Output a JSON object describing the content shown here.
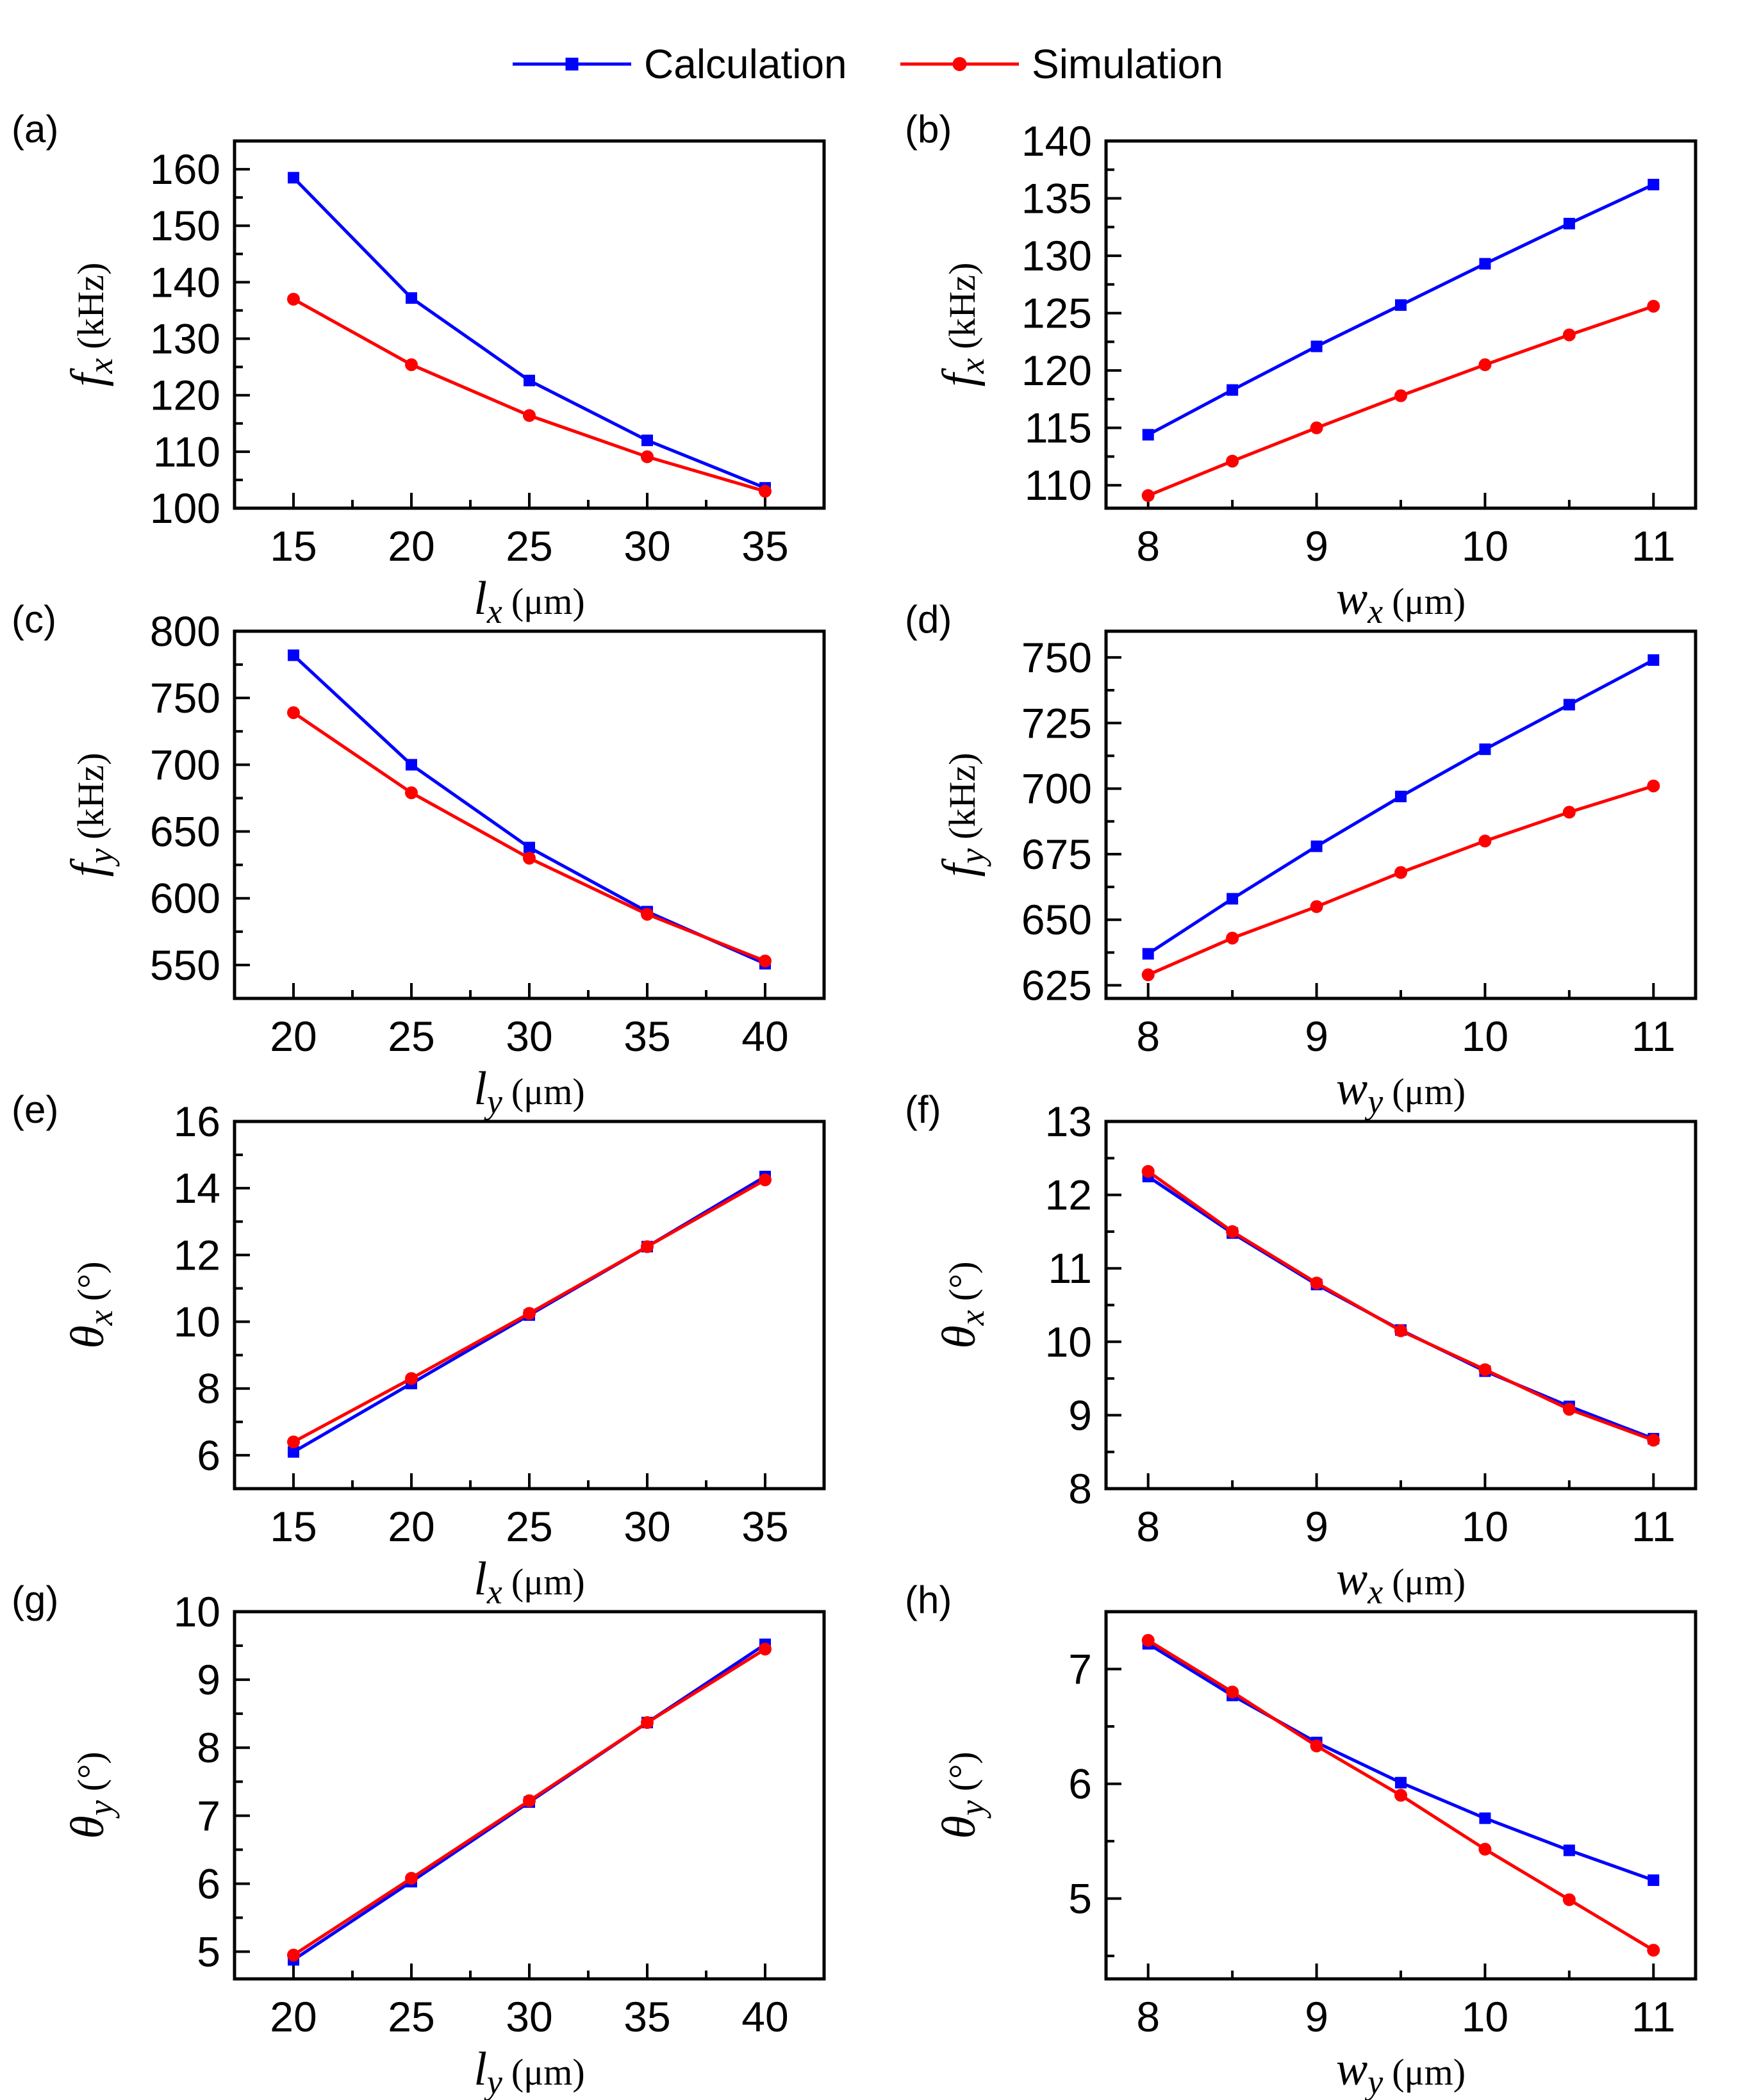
{
  "legend": {
    "entries": [
      {
        "name": "Calculation",
        "color": "#0000ff",
        "marker": "square"
      },
      {
        "name": "Simulation",
        "color": "#ff0000",
        "marker": "circle"
      }
    ]
  },
  "chart_data": [
    {
      "panel": "(a)",
      "type": "line",
      "xlabel": {
        "sym": "l",
        "sub": "x",
        "unit": "(μm)"
      },
      "ylabel": {
        "sym": "f",
        "sub": "x",
        "unit": "(kHz)"
      },
      "xlim": [
        12.5,
        37.5
      ],
      "ylim": [
        100,
        165
      ],
      "xticks": [
        15,
        20,
        25,
        30,
        35
      ],
      "xminor": [
        17.5,
        22.5,
        27.5,
        32.5
      ],
      "yticks": [
        100,
        110,
        120,
        130,
        140,
        150,
        160
      ],
      "yminor": [
        105,
        115,
        125,
        135,
        145,
        155
      ],
      "x": [
        15,
        20,
        25,
        30,
        35
      ],
      "series": [
        {
          "name": "Calculation",
          "values": [
            158.5,
            137.2,
            122.6,
            112.0,
            103.6
          ]
        },
        {
          "name": "Simulation",
          "values": [
            137.0,
            125.4,
            116.4,
            109.1,
            103.0
          ]
        }
      ]
    },
    {
      "panel": "(b)",
      "type": "line",
      "xlabel": {
        "sym": "w",
        "sub": "x",
        "unit": "(μm)"
      },
      "ylabel": {
        "sym": "f",
        "sub": "x",
        "unit": "(kHz)"
      },
      "xlim": [
        7.75,
        11.25
      ],
      "ylim": [
        108,
        140
      ],
      "xticks": [
        8,
        9,
        10,
        11
      ],
      "xminor": [
        8.5,
        9.5,
        10.5
      ],
      "yticks": [
        110,
        115,
        120,
        125,
        130,
        135,
        140
      ],
      "yminor": [
        112.5,
        117.5,
        122.5,
        127.5,
        132.5,
        137.5
      ],
      "x": [
        8,
        8.5,
        9,
        9.5,
        10,
        10.5,
        11
      ],
      "series": [
        {
          "name": "Calculation",
          "values": [
            114.4,
            118.3,
            122.1,
            125.7,
            129.3,
            132.8,
            136.2
          ]
        },
        {
          "name": "Simulation",
          "values": [
            109.1,
            112.1,
            115.0,
            117.8,
            120.5,
            123.1,
            125.6
          ]
        }
      ]
    },
    {
      "panel": "(c)",
      "type": "line",
      "xlabel": {
        "sym": "l",
        "sub": "y",
        "unit": "(μm)"
      },
      "ylabel": {
        "sym": "f",
        "sub": "y",
        "unit": "(kHz)"
      },
      "xlim": [
        17.5,
        42.5
      ],
      "ylim": [
        525,
        800
      ],
      "xticks": [
        20,
        25,
        30,
        35,
        40
      ],
      "xminor": [
        22.5,
        27.5,
        32.5,
        37.5
      ],
      "yticks": [
        550,
        600,
        650,
        700,
        750,
        800
      ],
      "yminor": [
        575,
        625,
        675,
        725,
        775
      ],
      "x": [
        20,
        25,
        30,
        35,
        40
      ],
      "series": [
        {
          "name": "Calculation",
          "values": [
            782,
            700,
            638,
            590,
            551
          ]
        },
        {
          "name": "Simulation",
          "values": [
            739,
            679,
            630,
            588,
            553
          ]
        }
      ]
    },
    {
      "panel": "(d)",
      "type": "line",
      "xlabel": {
        "sym": "w",
        "sub": "y",
        "unit": "(μm)"
      },
      "ylabel": {
        "sym": "f",
        "sub": "y",
        "unit": "(kHz)"
      },
      "xlim": [
        7.75,
        11.25
      ],
      "ylim": [
        620,
        760
      ],
      "xticks": [
        8,
        9,
        10,
        11
      ],
      "xminor": [
        8.5,
        9.5,
        10.5
      ],
      "yticks": [
        625,
        650,
        675,
        700,
        725,
        750
      ],
      "yminor": [
        637.5,
        662.5,
        687.5,
        712.5,
        737.5
      ],
      "x": [
        8,
        8.5,
        9,
        9.5,
        10,
        10.5,
        11
      ],
      "series": [
        {
          "name": "Calculation",
          "values": [
            637,
            658,
            678,
            697,
            715,
            732,
            749
          ]
        },
        {
          "name": "Simulation",
          "values": [
            629,
            643,
            655,
            668,
            680,
            691,
            701
          ]
        }
      ]
    },
    {
      "panel": "(e)",
      "type": "line",
      "xlabel": {
        "sym": "l",
        "sub": "x",
        "unit": "(μm)"
      },
      "ylabel": {
        "sym": "θ",
        "sub": "x",
        "unit": "(°)"
      },
      "xlim": [
        12.5,
        37.5
      ],
      "ylim": [
        5,
        16
      ],
      "xticks": [
        15,
        20,
        25,
        30,
        35
      ],
      "xminor": [
        17.5,
        22.5,
        27.5,
        32.5
      ],
      "yticks": [
        6,
        8,
        10,
        12,
        14,
        16
      ],
      "yminor": [
        7,
        9,
        11,
        13,
        15
      ],
      "x": [
        15,
        20,
        25,
        30,
        35
      ],
      "series": [
        {
          "name": "Calculation",
          "values": [
            6.1,
            8.15,
            10.2,
            12.25,
            14.35
          ]
        },
        {
          "name": "Simulation",
          "values": [
            6.4,
            8.3,
            10.25,
            12.25,
            14.25
          ]
        }
      ]
    },
    {
      "panel": "(f)",
      "type": "line",
      "xlabel": {
        "sym": "w",
        "sub": "x",
        "unit": "(μm)"
      },
      "ylabel": {
        "sym": "θ",
        "sub": "x",
        "unit": "(°)"
      },
      "xlim": [
        7.75,
        11.25
      ],
      "ylim": [
        8,
        13
      ],
      "xticks": [
        8,
        9,
        10,
        11
      ],
      "xminor": [
        8.5,
        9.5,
        10.5
      ],
      "yticks": [
        8,
        9,
        10,
        11,
        12,
        13
      ],
      "yminor": [
        8.5,
        9.5,
        10.5,
        11.5,
        12.5
      ],
      "x": [
        8,
        8.5,
        9,
        9.5,
        10,
        10.5,
        11
      ],
      "series": [
        {
          "name": "Calculation",
          "values": [
            12.25,
            11.48,
            10.78,
            10.16,
            9.6,
            9.12,
            8.68
          ]
        },
        {
          "name": "Simulation",
          "values": [
            12.32,
            11.5,
            10.8,
            10.15,
            9.62,
            9.08,
            8.66
          ]
        }
      ]
    },
    {
      "panel": "(g)",
      "type": "line",
      "xlabel": {
        "sym": "l",
        "sub": "y",
        "unit": "(μm)"
      },
      "ylabel": {
        "sym": "θ",
        "sub": "y",
        "unit": "(°)"
      },
      "xlim": [
        17.5,
        42.5
      ],
      "ylim": [
        4.6,
        10
      ],
      "xticks": [
        20,
        25,
        30,
        35,
        40
      ],
      "xminor": [
        22.5,
        27.5,
        32.5,
        37.5
      ],
      "yticks": [
        5,
        6,
        7,
        8,
        9,
        10
      ],
      "yminor": [
        5.5,
        6.5,
        7.5,
        8.5,
        9.5
      ],
      "x": [
        20,
        25,
        30,
        35,
        40
      ],
      "series": [
        {
          "name": "Calculation",
          "values": [
            4.88,
            6.03,
            7.2,
            8.37,
            9.52
          ]
        },
        {
          "name": "Simulation",
          "values": [
            4.95,
            6.08,
            7.22,
            8.37,
            9.45
          ]
        }
      ]
    },
    {
      "panel": "(h)",
      "type": "line",
      "xlabel": {
        "sym": "w",
        "sub": "y",
        "unit": "(μm)"
      },
      "ylabel": {
        "sym": "θ",
        "sub": "y",
        "unit": "(°)"
      },
      "xlim": [
        7.75,
        11.25
      ],
      "ylim": [
        4.3,
        7.5
      ],
      "xticks": [
        8,
        9,
        10,
        11
      ],
      "xminor": [
        8.5,
        9.5,
        10.5
      ],
      "yticks": [
        5,
        6,
        7
      ],
      "yminor": [
        4.5,
        5.5,
        6.5
      ],
      "x": [
        8,
        8.5,
        9,
        9.5,
        10,
        10.5,
        11
      ],
      "series": [
        {
          "name": "Calculation",
          "values": [
            7.22,
            6.77,
            6.36,
            6.01,
            5.7,
            5.42,
            5.16
          ]
        },
        {
          "name": "Simulation",
          "values": [
            7.25,
            6.8,
            6.33,
            5.9,
            5.43,
            4.99,
            4.55
          ]
        }
      ]
    }
  ]
}
